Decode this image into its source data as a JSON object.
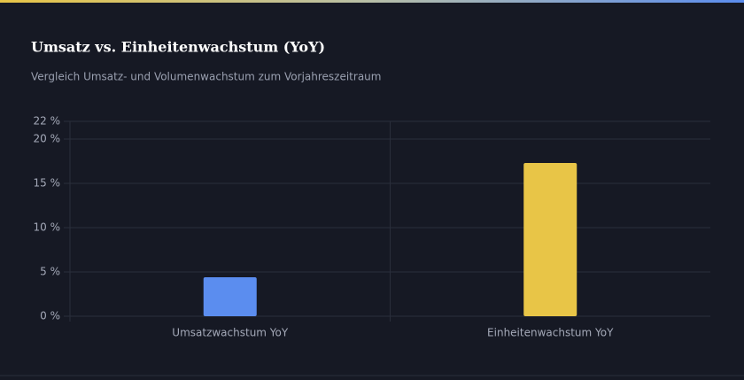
{
  "chart_data": {
    "type": "bar",
    "title": "Umsatz vs. Einheitenwachstum (YoY)",
    "subtitle": "Vergleich Umsatz- und Volumenwachstum zum Vorjahreszeitraum",
    "categories": [
      "Umsatzwachstum YoY",
      "Einheitenwachstum YoY"
    ],
    "values": [
      4.4,
      17.3
    ],
    "colors": [
      "#5b8def",
      "#e8c547"
    ],
    "ylim": [
      0,
      22
    ],
    "yticks": [
      {
        "value": 0,
        "label": "0 %"
      },
      {
        "value": 5,
        "label": "5 %"
      },
      {
        "value": 10,
        "label": "10 %"
      },
      {
        "value": 15,
        "label": "15 %"
      },
      {
        "value": 20,
        "label": "20 %"
      },
      {
        "value": 22,
        "label": "22 %"
      }
    ],
    "grid": true
  }
}
